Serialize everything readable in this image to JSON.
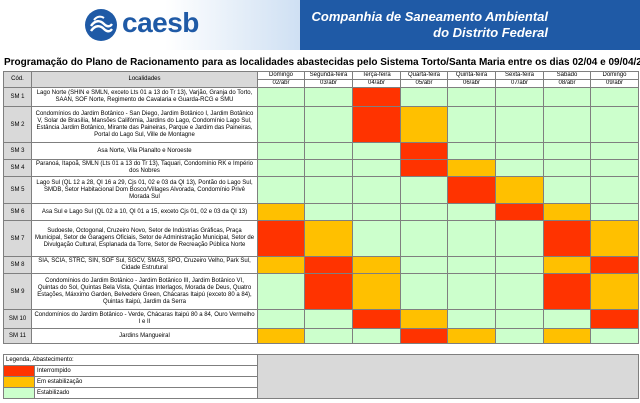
{
  "header": {
    "logo_text": "caesb",
    "company_line1": "Companhia de Saneamento Ambiental",
    "company_line2": "do Distrito Federal"
  },
  "title": "Programação do Plano de Racionamento para as localidades abastecidas pelo Sistema Torto/Santa Maria entre os dias 02/04 e 09/04/2017",
  "table": {
    "col_code": "Cód.",
    "col_loc": "Localidades",
    "days": [
      {
        "name": "Domingo",
        "date": "02/abr"
      },
      {
        "name": "Segunda-feira",
        "date": "03/abr"
      },
      {
        "name": "Terça-feira",
        "date": "04/abr"
      },
      {
        "name": "Quarta-feira",
        "date": "05/abr"
      },
      {
        "name": "Quinta-feira",
        "date": "06/abr"
      },
      {
        "name": "Sexta-feira",
        "date": "07/abr"
      },
      {
        "name": "Sábado",
        "date": "08/abr"
      },
      {
        "name": "Domingo",
        "date": "09/abr"
      }
    ],
    "rows": [
      {
        "code": "SM 1",
        "loc": "Lago Norte (SHIN e SMLN, exceto Lts 01 a 13 do Tr 13), Varjão, Granja do Torto, SAAN, SOF Norte, Regimento de Cavalaria e Guarda-RCG e SMU",
        "status": [
          "g",
          "g",
          "r",
          "g",
          "g",
          "g",
          "g",
          "g"
        ]
      },
      {
        "code": "SM 2",
        "loc": "Condomínios do Jardim Botânico - San Diego, Jardim Botânico I, Jardim Botânico V, Solar de Brasília, Mansões Califórnia, Jardins do Lago, Condomínio Lago Sul, Estância Jardim Botânico, Mirante das Paineiras, Parque e Jardim das Paineiras, Portal do Lago Sul, Ville de Montagne",
        "status": [
          "g",
          "g",
          "r",
          "o",
          "g",
          "g",
          "g",
          "g"
        ]
      },
      {
        "code": "SM 3",
        "loc": "Asa Norte, Vila Planalto e Noroeste",
        "status": [
          "g",
          "g",
          "g",
          "r",
          "g",
          "g",
          "g",
          "g"
        ]
      },
      {
        "code": "SM 4",
        "loc": "Paranoá, Itapoã, SMLN (Lts 01 a 13 do Tr 13), Taquari, Condomínio RK e Império dos Nobres",
        "status": [
          "g",
          "g",
          "g",
          "r",
          "o",
          "g",
          "g",
          "g"
        ]
      },
      {
        "code": "SM 5",
        "loc": "Lago Sul (QL 12 a 28, QI 16 a 29, Cjs 01, 02 e 03 da QI 13), Pontão do Lago Sul, SMDB, Setor Habitacional Dom Bosco/Villages Alvorada, Condomínio Privê Morada Sul",
        "status": [
          "g",
          "g",
          "g",
          "g",
          "r",
          "o",
          "g",
          "g"
        ]
      },
      {
        "code": "SM 6",
        "loc": "Asa Sul e Lago Sul (QL 02 a 10, QI 01 a 15, exceto Cjs 01, 02 e 03 da QI 13)",
        "status": [
          "o",
          "g",
          "g",
          "g",
          "g",
          "r",
          "o",
          "g"
        ]
      },
      {
        "code": "SM 7",
        "loc": "Sudoeste, Octogonal, Cruzeiro Novo, Setor de Indústrias Gráficas, Praça Municipal, Setor de Garagens Oficiais, Setor de Administração Municipal, Setor de Divulgação Cultural, Esplanada da Torre, Setor de Recreação Pública Norte",
        "status": [
          "r",
          "o",
          "g",
          "g",
          "g",
          "g",
          "r",
          "o"
        ]
      },
      {
        "code": "SM 8",
        "loc": "SIA, SCIA, STRC, SIN, SOF Sul, SGCV, SMAS, SPO, Cruzeiro Velho, Park Sul, Cidade Estrutural",
        "status": [
          "o",
          "r",
          "o",
          "g",
          "g",
          "g",
          "o",
          "r"
        ]
      },
      {
        "code": "SM 9",
        "loc": "Condomínios do Jardim Botânico - Jardim Botânico III, Jardim Botânico VI, Quintas do Sol, Quintas Bela Vista, Quintas Interlagos, Morada de Deus, Quatro Estações, Máxximo Garden, Belvedere Green, Chácaras Itaipú (exceto 80 a 84), Quintas Itaipú, Jardim da Serra",
        "status": [
          "g",
          "r",
          "o",
          "g",
          "g",
          "g",
          "r",
          "o"
        ]
      },
      {
        "code": "SM 10",
        "loc": "Condomínios do Jardim Botânico - Verde, Chácaras Itaipú 80 a 84, Ouro Vermelho I e II",
        "status": [
          "g",
          "g",
          "r",
          "o",
          "g",
          "g",
          "g",
          "r"
        ]
      },
      {
        "code": "SM 11",
        "loc": "Jardins Mangueiral",
        "status": [
          "o",
          "g",
          "g",
          "r",
          "o",
          "g",
          "o",
          "g"
        ]
      }
    ]
  },
  "legend": {
    "title": "Legenda, Abastecimento:",
    "items": [
      {
        "label": "Interrompido",
        "color": "#ff3300"
      },
      {
        "label": "Em estabilização",
        "color": "#ffc000"
      },
      {
        "label": "Estabilizado",
        "color": "#ccffcc"
      }
    ]
  },
  "colors": {
    "brand_blue": "#1f5aa6",
    "interrompido": "#ff3300",
    "em_estabilizacao": "#ffc000",
    "estabilizado": "#ccffcc"
  }
}
